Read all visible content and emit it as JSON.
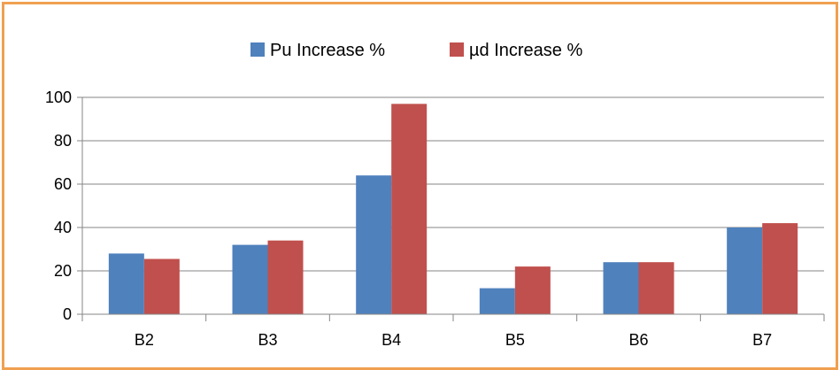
{
  "chart_data": {
    "type": "bar",
    "title": "",
    "xlabel": "",
    "ylabel": "",
    "categories": [
      "B2",
      "B3",
      "B4",
      "B5",
      "B6",
      "B7"
    ],
    "series": [
      {
        "name": "Pu Increase %",
        "color": "#4F81BD",
        "values": [
          28,
          32,
          64,
          12,
          24,
          40
        ]
      },
      {
        "name": "µd Increase %",
        "color": "#C0504D",
        "values": [
          25.5,
          34,
          97,
          22,
          24,
          42
        ]
      }
    ],
    "ylim": [
      0,
      100
    ],
    "yticks": [
      0,
      20,
      40,
      60,
      80,
      100
    ],
    "grid": true,
    "legend_position": "top"
  },
  "colors": {
    "frame_border": "#F0A050",
    "gridline": "#868686",
    "axis": "#868686"
  }
}
